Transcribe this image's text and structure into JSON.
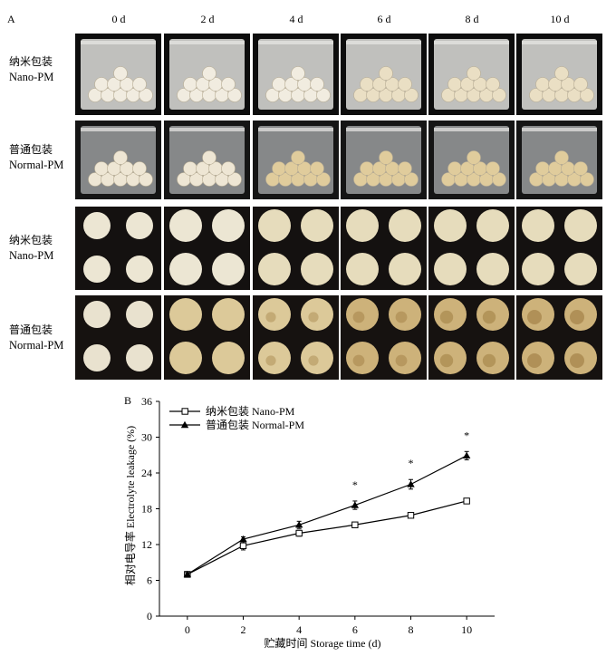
{
  "panel_a": {
    "letter": "A",
    "days": [
      "0 d",
      "2 d",
      "4 d",
      "6 d",
      "8 d",
      "10 d"
    ],
    "row_labels": [
      {
        "zh": "纳米包装",
        "en": "Nano-PM"
      },
      {
        "zh": "普通包装",
        "en": "Normal-PM"
      },
      {
        "zh": "纳米包装",
        "en": "Nano-PM"
      },
      {
        "zh": "普通包装",
        "en": "Normal-PM"
      }
    ]
  },
  "panel_b": {
    "letter": "B",
    "legend": [
      {
        "label": "纳米包装 Nano-PM"
      },
      {
        "label": "普通包装 Normal-PM"
      }
    ],
    "ylabel": "相对电导率 Electrolyte leakage (%)",
    "xlabel": "贮藏时间 Storage time (d)"
  },
  "chart_data": {
    "type": "line",
    "x": [
      0,
      2,
      4,
      6,
      8,
      10
    ],
    "xlim": [
      -1,
      11
    ],
    "ylim": [
      0,
      36
    ],
    "yticks": [
      0,
      6,
      12,
      18,
      24,
      30,
      36
    ],
    "xticks": [
      0,
      2,
      4,
      6,
      8,
      10
    ],
    "xlabel": "贮藏时间 Storage time (d)",
    "ylabel": "相对电导率 Electrolyte leakage (%)",
    "legend_position": "top-left",
    "series": [
      {
        "name": "纳米包装 Nano-PM",
        "marker": "open-square",
        "values": [
          7.0,
          11.8,
          13.9,
          15.3,
          16.9,
          19.3
        ],
        "errors": [
          0.3,
          0.7,
          0.5,
          0.3,
          0.3,
          0.4
        ]
      },
      {
        "name": "普通包装 Normal-PM",
        "marker": "filled-triangle",
        "values": [
          7.0,
          12.9,
          15.3,
          18.6,
          22.1,
          26.9
        ],
        "errors": [
          0.3,
          0.4,
          0.6,
          0.7,
          0.8,
          0.7
        ]
      }
    ],
    "annotations": [
      {
        "x": 6,
        "text": "*"
      },
      {
        "x": 8,
        "text": "*"
      },
      {
        "x": 10,
        "text": "*"
      }
    ]
  }
}
